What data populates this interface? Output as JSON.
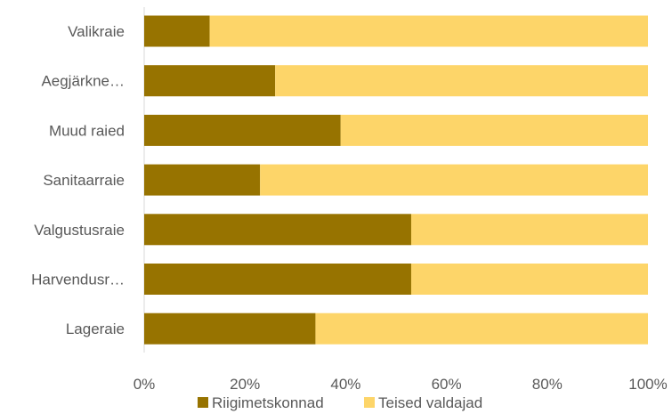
{
  "chart_data": {
    "type": "bar",
    "orientation": "horizontal",
    "stacked": "percent",
    "categories": [
      "Valikraie",
      "Aegjärkne…",
      "Muud raied",
      "Sanitaarraie",
      "Valgustusraie",
      "Harvendusr…",
      "Lageraie"
    ],
    "series": [
      {
        "name": "Riigimetskonnad",
        "values": [
          13,
          26,
          39,
          23,
          53,
          53,
          34
        ]
      },
      {
        "name": "Teised valdajad",
        "values": [
          87,
          74,
          61,
          77,
          47,
          47,
          66
        ]
      }
    ],
    "xlim": [
      0,
      100
    ],
    "x_ticks": [
      "0%",
      "20%",
      "40%",
      "60%",
      "80%",
      "100%"
    ],
    "grid": false,
    "legend_position": "bottom",
    "colors": {
      "Riigimetskonnad": "#977300",
      "Teised valdajad": "#fdd569"
    }
  }
}
